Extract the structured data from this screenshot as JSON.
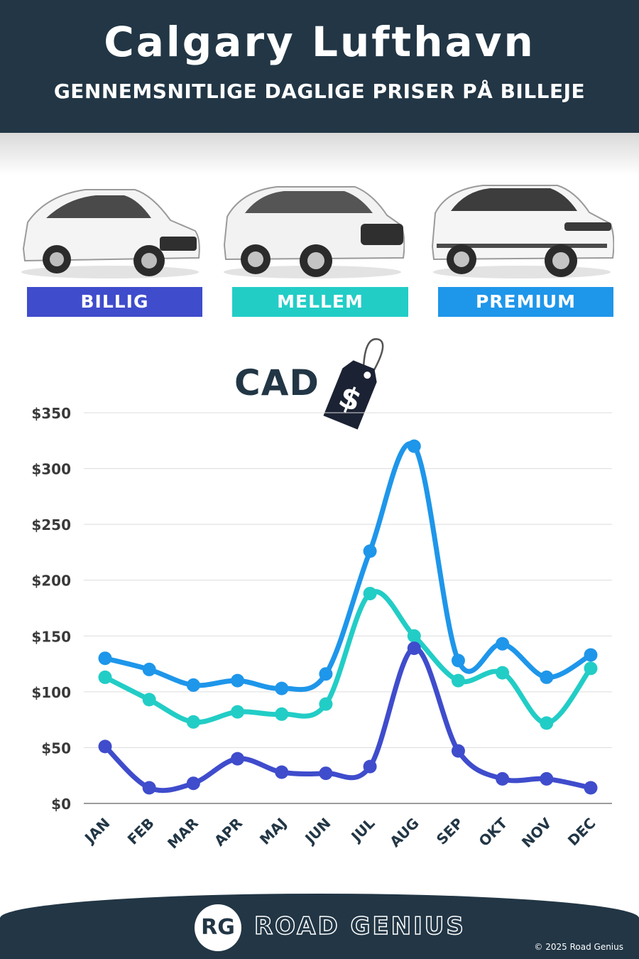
{
  "header": {
    "title": "Calgary Lufthavn",
    "subtitle": "GENNEMSNITLIGE DAGLIGE PRISER PÅ BILLEJE"
  },
  "categories": [
    {
      "label": "BILLIG",
      "color": "#3f4ccc"
    },
    {
      "label": "MELLEM",
      "color": "#22cdc6"
    },
    {
      "label": "PREMIUM",
      "color": "#1e96ea"
    }
  ],
  "currency_label": "CAD",
  "currency_symbol": "$",
  "chart_data": {
    "type": "line",
    "categories": [
      "JAN",
      "FEB",
      "MAR",
      "APR",
      "MAJ",
      "JUN",
      "JUL",
      "AUG",
      "SEP",
      "OKT",
      "NOV",
      "DEC"
    ],
    "series": [
      {
        "name": "PREMIUM",
        "color": "#1e96ea",
        "values": [
          130,
          120,
          106,
          110,
          103,
          116,
          226,
          320,
          128,
          143,
          113,
          133
        ]
      },
      {
        "name": "MELLEM",
        "color": "#22cdc6",
        "values": [
          113,
          93,
          73,
          82,
          80,
          89,
          188,
          150,
          110,
          117,
          72,
          121
        ]
      },
      {
        "name": "BILLIG",
        "color": "#3f4ccc",
        "values": [
          51,
          14,
          18,
          40,
          28,
          27,
          33,
          139,
          47,
          22,
          22,
          14
        ]
      }
    ],
    "yticks": [
      "$0",
      "$50",
      "$100",
      "$150",
      "$200",
      "$250",
      "$300",
      "$350"
    ],
    "ylim": [
      0,
      350
    ],
    "grid": true
  },
  "footer": {
    "logo_initials": "RG",
    "logo_text": "ROAD GENIUS",
    "copyright": "© 2025 Road Genius"
  }
}
